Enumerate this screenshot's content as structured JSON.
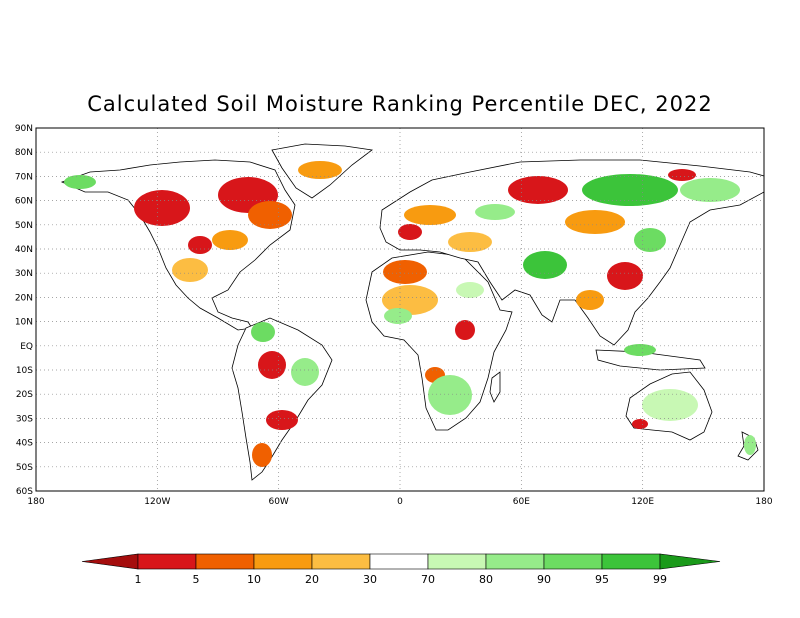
{
  "title": "Calculated Soil Moisture Ranking Percentile DEC, 2022",
  "map": {
    "lat_labels": [
      "90N",
      "80N",
      "70N",
      "60N",
      "50N",
      "40N",
      "30N",
      "20N",
      "10N",
      "EQ",
      "10S",
      "20S",
      "30S",
      "40S",
      "50S",
      "60S"
    ],
    "lon_labels": [
      "180",
      "120W",
      "60W",
      "0",
      "60E",
      "120E",
      "180"
    ],
    "lat_range": [
      -60,
      90
    ],
    "lon_range": [
      -180,
      180
    ],
    "grid": "dotted"
  },
  "colorbar": {
    "tick_labels": [
      "1",
      "5",
      "10",
      "20",
      "30",
      "70",
      "80",
      "90",
      "95",
      "99"
    ],
    "colors": {
      "below_1": "#a50d0d",
      "1-5": "#d8161a",
      "5-10": "#f06000",
      "10-20": "#f89b10",
      "20-30": "#fcbd42",
      "30-70": "#ffffff",
      "70-80": "#c8f8b4",
      "80-90": "#96ec8a",
      "90-95": "#6cdc62",
      "95-99": "#3cc43a",
      "above_99": "#1a9a1a"
    }
  }
}
